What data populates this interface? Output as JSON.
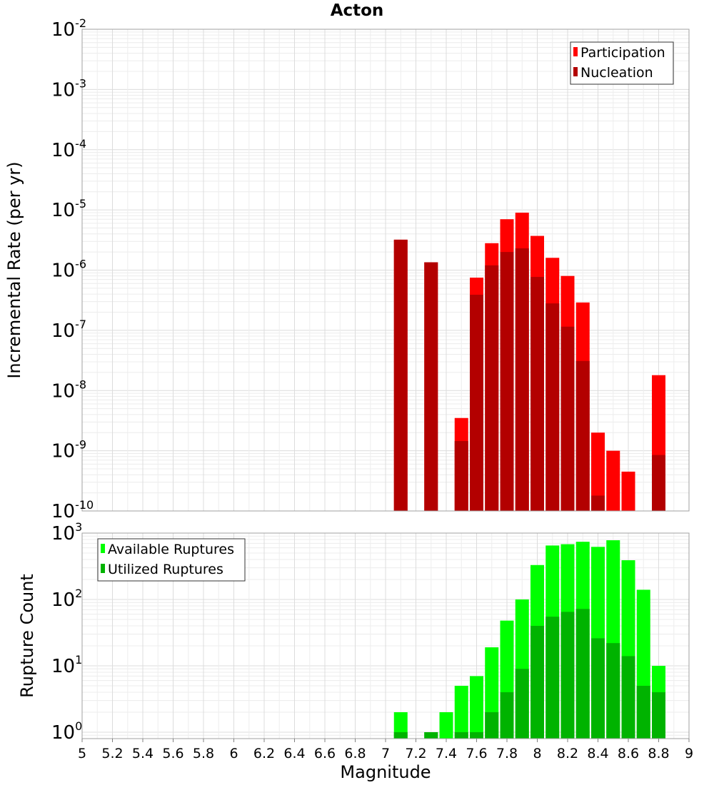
{
  "figure": {
    "title": "Acton"
  },
  "chart_data": [
    {
      "type": "bar",
      "name": "rate",
      "ylabel": "Incremental Rate (per yr)",
      "yscale": "log",
      "ylim": [
        1e-10,
        0.01
      ],
      "xlim": [
        5,
        9
      ],
      "ytick_exponents": [
        -2,
        -3,
        -4,
        -5,
        -6,
        -7,
        -8,
        -9,
        -10
      ],
      "ytick_base": "10",
      "legend_position": "top-right",
      "colors": {
        "Participation": "#ff0000",
        "Nucleation": "#b30000"
      },
      "series": [
        {
          "name": "Participation",
          "x": [
            7.1,
            7.3,
            7.5,
            7.6,
            7.7,
            7.8,
            7.9,
            8.0,
            8.1,
            8.2,
            8.3,
            8.4,
            8.5,
            8.6,
            8.7,
            8.8
          ],
          "values": [
            3.2e-06,
            1.35e-06,
            3.5e-09,
            7.5e-07,
            2.8e-06,
            7e-06,
            9e-06,
            3.7e-06,
            1.6e-06,
            8e-07,
            2.9e-07,
            2e-09,
            1e-09,
            4.5e-10,
            1e-10,
            1.8e-08
          ]
        },
        {
          "name": "Nucleation",
          "x": [
            7.1,
            7.3,
            7.5,
            7.6,
            7.7,
            7.8,
            7.9,
            8.0,
            8.1,
            8.2,
            8.3,
            8.4,
            8.5,
            8.6,
            8.7,
            8.8
          ],
          "values": [
            3.2e-06,
            1.35e-06,
            1.45e-09,
            3.9e-07,
            1.2e-06,
            2e-06,
            2.3e-06,
            7.7e-07,
            2.8e-07,
            1.15e-07,
            3.1e-08,
            1.8e-10,
            null,
            null,
            null,
            8.5e-10
          ]
        }
      ]
    },
    {
      "type": "bar",
      "name": "count",
      "ylabel": "Rupture Count",
      "xlabel": "Magnitude",
      "yscale": "log",
      "ylim": [
        0.8,
        1000
      ],
      "xlim": [
        5,
        9
      ],
      "ytick_exponents": [
        3,
        2,
        1,
        0
      ],
      "ytick_base": "10",
      "xticks": [
        "5",
        "5.2",
        "5.4",
        "5.6",
        "5.8",
        "6",
        "6.2",
        "6.4",
        "6.6",
        "6.8",
        "7",
        "7.2",
        "7.4",
        "7.6",
        "7.8",
        "8",
        "8.2",
        "8.4",
        "8.6",
        "8.8",
        "9"
      ],
      "legend_position": "top-left",
      "colors": {
        "Available Ruptures": "#00ff00",
        "Utilized Ruptures": "#00b300"
      },
      "series": [
        {
          "name": "Available Ruptures",
          "x": [
            7.1,
            7.3,
            7.4,
            7.5,
            7.6,
            7.7,
            7.8,
            7.9,
            8.0,
            8.1,
            8.2,
            8.3,
            8.4,
            8.5,
            8.6,
            8.7,
            8.8
          ],
          "values": [
            2,
            1,
            2,
            5,
            7,
            19,
            48,
            100,
            330,
            650,
            680,
            740,
            620,
            780,
            390,
            140,
            10
          ]
        },
        {
          "name": "Utilized Ruptures",
          "x": [
            7.1,
            7.3,
            7.4,
            7.5,
            7.6,
            7.7,
            7.8,
            7.9,
            8.0,
            8.1,
            8.2,
            8.3,
            8.4,
            8.5,
            8.6,
            8.7,
            8.8
          ],
          "values": [
            1,
            1,
            null,
            1,
            1,
            2,
            4,
            9,
            40,
            55,
            65,
            72,
            26,
            22,
            14,
            5,
            4
          ]
        }
      ]
    }
  ]
}
